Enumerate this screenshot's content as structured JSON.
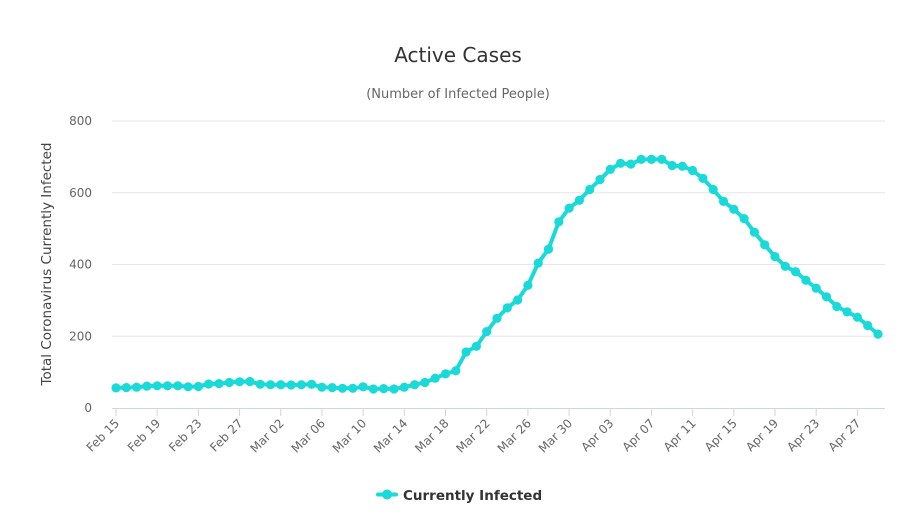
{
  "chart_data": {
    "type": "line",
    "title": "Active Cases",
    "subtitle": "(Number of Infected People)",
    "xlabel": "",
    "ylabel": "Total Coronavirus Currently Infected",
    "ylim": [
      0,
      800
    ],
    "yticks": [
      0,
      200,
      400,
      600,
      800
    ],
    "grid": true,
    "legend_position": "bottom-center",
    "x": [
      "Feb 15",
      "Feb 16",
      "Feb 17",
      "Feb 18",
      "Feb 19",
      "Feb 20",
      "Feb 21",
      "Feb 22",
      "Feb 23",
      "Feb 24",
      "Feb 25",
      "Feb 26",
      "Feb 27",
      "Feb 28",
      "Feb 29",
      "Mar 01",
      "Mar 02",
      "Mar 03",
      "Mar 04",
      "Mar 05",
      "Mar 06",
      "Mar 07",
      "Mar 08",
      "Mar 09",
      "Mar 10",
      "Mar 11",
      "Mar 12",
      "Mar 13",
      "Mar 14",
      "Mar 15",
      "Mar 16",
      "Mar 17",
      "Mar 18",
      "Mar 19",
      "Mar 20",
      "Mar 21",
      "Mar 22",
      "Mar 23",
      "Mar 24",
      "Mar 25",
      "Mar 26",
      "Mar 27",
      "Mar 28",
      "Mar 29",
      "Mar 30",
      "Mar 31",
      "Apr 01",
      "Apr 02",
      "Apr 03",
      "Apr 04",
      "Apr 05",
      "Apr 06",
      "Apr 07",
      "Apr 08",
      "Apr 09",
      "Apr 10",
      "Apr 11",
      "Apr 12",
      "Apr 13",
      "Apr 14",
      "Apr 15",
      "Apr 16",
      "Apr 17",
      "Apr 18",
      "Apr 19",
      "Apr 20",
      "Apr 21",
      "Apr 22",
      "Apr 23",
      "Apr 24",
      "Apr 25",
      "Apr 26",
      "Apr 27",
      "Apr 28",
      "Apr 29"
    ],
    "xtick_labels": [
      "Feb 15",
      "Feb 19",
      "Feb 23",
      "Feb 27",
      "Mar 02",
      "Mar 06",
      "Mar 10",
      "Mar 14",
      "Mar 18",
      "Mar 22",
      "Mar 26",
      "Mar 30",
      "Apr 03",
      "Apr 07",
      "Apr 11",
      "Apr 15",
      "Apr 19",
      "Apr 23",
      "Apr 27"
    ],
    "series": [
      {
        "name": "Currently Infected",
        "color": "#1ad9d9",
        "values": [
          56,
          57,
          58,
          61,
          62,
          62,
          62,
          59,
          60,
          67,
          68,
          71,
          73,
          74,
          66,
          65,
          65,
          64,
          65,
          66,
          58,
          57,
          55,
          55,
          59,
          53,
          54,
          53,
          58,
          65,
          71,
          83,
          95,
          104,
          156,
          172,
          213,
          250,
          279,
          301,
          342,
          404,
          443,
          519,
          557,
          579,
          609,
          637,
          665,
          682,
          680,
          693,
          693,
          693,
          676,
          674,
          662,
          640,
          609,
          576,
          554,
          528,
          490,
          455,
          422,
          395,
          380,
          356,
          334,
          310,
          283,
          268,
          253,
          230,
          206
        ]
      }
    ]
  }
}
